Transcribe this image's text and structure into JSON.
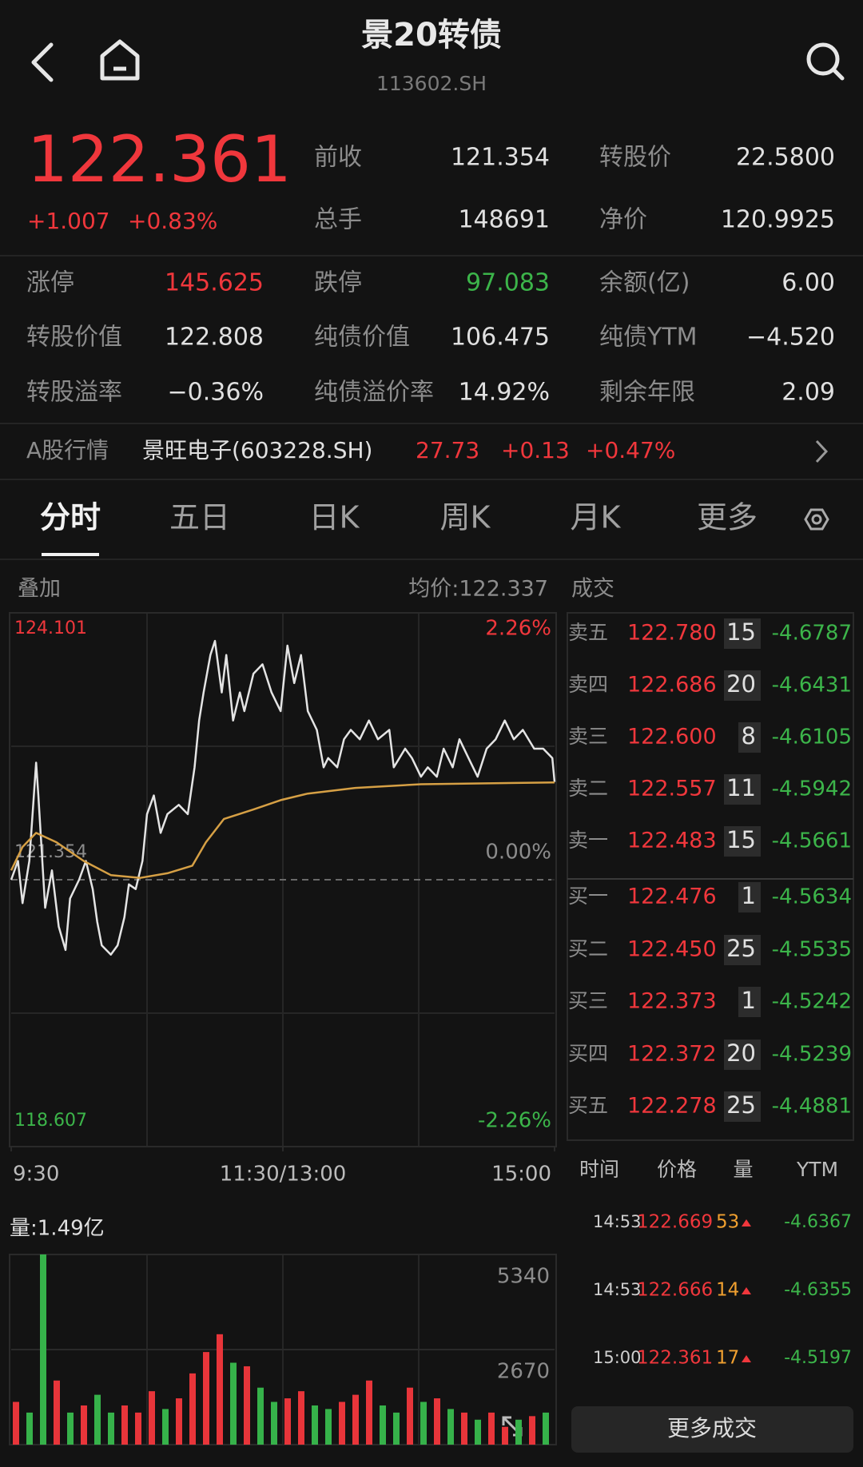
{
  "header": {
    "title": "景20转债",
    "code": "113602.SH"
  },
  "quote": {
    "price": "122.361",
    "change": "+1.007",
    "change_pct": "+0.83%",
    "stats": [
      {
        "label": "前收",
        "value": "121.354"
      },
      {
        "label": "转股价",
        "value": "22.5800"
      },
      {
        "label": "总手",
        "value": "148691"
      },
      {
        "label": "净价",
        "value": "120.9925"
      }
    ],
    "details": [
      {
        "label": "涨停",
        "value": "145.625"
      },
      {
        "label": "跌停",
        "value": "97.083"
      },
      {
        "label": "余额(亿)",
        "value": "6.00"
      },
      {
        "label": "转股价值",
        "value": "122.808"
      },
      {
        "label": "纯债价值",
        "value": "106.475"
      },
      {
        "label": "纯债YTM",
        "value": "−4.520"
      },
      {
        "label": "转股溢率",
        "value": "−0.36%"
      },
      {
        "label": "纯债溢价率",
        "value": "14.92%"
      },
      {
        "label": "剩余年限",
        "value": "2.09"
      }
    ]
  },
  "stock": {
    "label": "A股行情",
    "name": "景旺电子(603228.SH)",
    "price": "27.73",
    "change": "+0.13",
    "change_pct": "+0.47%"
  },
  "tabs": [
    "分时",
    "五日",
    "日K",
    "周K",
    "月K",
    "更多"
  ],
  "chart_panel": {
    "overlay": "叠加",
    "average": "均价:122.337",
    "trades_title": "成交",
    "volume_label": "量:1.49亿"
  },
  "chart_data": [
    {
      "type": "line",
      "xlim": [
        0,
        240
      ],
      "xticks": [
        {
          "value": 0,
          "label": "9:30"
        },
        {
          "value": 120,
          "label": "11:30/13:00"
        },
        {
          "value": 240,
          "label": "15:00"
        }
      ],
      "ylim": [
        118.607,
        124.101
      ],
      "yticks": [
        118.607,
        121.354,
        124.101
      ],
      "y2lim": [
        -2.26,
        2.26
      ],
      "y2ticks": [
        {
          "value": -2.26,
          "label": "-2.26%"
        },
        {
          "value": 0,
          "label": "0.00%"
        },
        {
          "value": 2.26,
          "label": "2.26%"
        }
      ],
      "series": [
        {
          "color": "#e4e4e4",
          "x": [
            0,
            3,
            5,
            8,
            11,
            12,
            15,
            18,
            21,
            24,
            26,
            30,
            33,
            36,
            38,
            40,
            44,
            47,
            50,
            52,
            55,
            58,
            60,
            63,
            66,
            69,
            74,
            78,
            81,
            83,
            85,
            88,
            90,
            93,
            95,
            98,
            101,
            103,
            107,
            111,
            115,
            119,
            122,
            125,
            128,
            131,
            135,
            138,
            140,
            144,
            147,
            150,
            154,
            158,
            162,
            167,
            169,
            174,
            177,
            181,
            184,
            188,
            191,
            195,
            198,
            202,
            206,
            210,
            214,
            218,
            222,
            226,
            231,
            235,
            239,
            240
          ],
          "values": [
            121.354,
            121.547,
            121.113,
            121.547,
            122.559,
            122.222,
            121.065,
            121.45,
            120.872,
            120.631,
            121.161,
            121.354,
            121.547,
            121.258,
            120.92,
            120.679,
            120.583,
            120.679,
            120.968,
            121.306,
            121.258,
            121.547,
            122.029,
            122.222,
            121.836,
            122.029,
            122.125,
            122.029,
            122.511,
            122.993,
            123.282,
            123.667,
            123.812,
            123.282,
            123.667,
            122.993,
            123.282,
            123.089,
            123.475,
            123.571,
            123.282,
            123.089,
            123.764,
            123.378,
            123.667,
            123.089,
            122.896,
            122.511,
            122.607,
            122.511,
            122.8,
            122.896,
            122.8,
            122.993,
            122.8,
            122.896,
            122.511,
            122.703,
            122.607,
            122.414,
            122.511,
            122.414,
            122.703,
            122.511,
            122.8,
            122.607,
            122.414,
            122.703,
            122.8,
            122.993,
            122.8,
            122.896,
            122.703,
            122.703,
            122.607,
            122.361
          ]
        },
        {
          "color": "#d6a045",
          "x": [
            0,
            5,
            11,
            20,
            32,
            44,
            57,
            69,
            80,
            86,
            94,
            107,
            119,
            131,
            152,
            181,
            240
          ],
          "values": [
            121.45,
            121.691,
            121.836,
            121.74,
            121.547,
            121.402,
            121.373,
            121.421,
            121.499,
            121.74,
            121.98,
            122.077,
            122.173,
            122.241,
            122.299,
            122.337,
            122.356
          ]
        }
      ]
    },
    {
      "type": "bar",
      "xlim": [
        0,
        240
      ],
      "x": [
        0,
        6,
        12,
        18,
        24,
        30,
        36,
        42,
        48,
        54,
        60,
        66,
        72,
        78,
        84,
        90,
        96,
        102,
        108,
        114,
        120,
        126,
        132,
        138,
        144,
        150,
        156,
        162,
        168,
        174,
        180,
        186,
        192,
        198,
        204,
        210,
        216,
        222,
        228,
        234
      ],
      "ylim": [
        0,
        5340
      ],
      "yticks": [
        2670,
        5340
      ],
      "series": [
        {
          "color": "#e8353a",
          "values": [
            1200,
            null,
            null,
            1800,
            null,
            1100,
            null,
            null,
            1100,
            900,
            1500,
            null,
            1300,
            2000,
            2600,
            3100,
            null,
            2200,
            null,
            null,
            1300,
            1500,
            null,
            null,
            1200,
            1400,
            1800,
            null,
            null,
            1600,
            null,
            1300,
            null,
            900,
            null,
            900,
            500,
            null,
            800,
            null
          ]
        },
        {
          "color": "#36b24a",
          "values": [
            null,
            900,
            5340,
            null,
            900,
            null,
            1400,
            900,
            null,
            null,
            null,
            1000,
            null,
            null,
            null,
            null,
            2300,
            null,
            1600,
            1200,
            null,
            null,
            1100,
            1000,
            null,
            null,
            null,
            1100,
            900,
            null,
            1200,
            null,
            1000,
            null,
            700,
            null,
            null,
            700,
            null,
            900
          ]
        }
      ]
    }
  ],
  "order_book": {
    "sell": [
      {
        "label": "卖五",
        "price": "122.780",
        "volume": "15",
        "ytm": "-4.6787"
      },
      {
        "label": "卖四",
        "price": "122.686",
        "volume": "20",
        "ytm": "-4.6431"
      },
      {
        "label": "卖三",
        "price": "122.600",
        "volume": "8",
        "ytm": "-4.6105"
      },
      {
        "label": "卖二",
        "price": "122.557",
        "volume": "11",
        "ytm": "-4.5942"
      },
      {
        "label": "卖一",
        "price": "122.483",
        "volume": "15",
        "ytm": "-4.5661"
      }
    ],
    "buy": [
      {
        "label": "买一",
        "price": "122.476",
        "volume": "1",
        "ytm": "-4.5634"
      },
      {
        "label": "买二",
        "price": "122.450",
        "volume": "25",
        "ytm": "-4.5535"
      },
      {
        "label": "买三",
        "price": "122.373",
        "volume": "1",
        "ytm": "-4.5242"
      },
      {
        "label": "买四",
        "price": "122.372",
        "volume": "20",
        "ytm": "-4.5239"
      },
      {
        "label": "买五",
        "price": "122.278",
        "volume": "25",
        "ytm": "-4.4881"
      }
    ]
  },
  "trades": {
    "headers": [
      "时间",
      "价格",
      "量",
      "YTM"
    ],
    "rows": [
      {
        "time": "14:53",
        "price": "122.669",
        "volume": "53",
        "ytm": "-4.6367"
      },
      {
        "time": "14:53",
        "price": "122.666",
        "volume": "14",
        "ytm": "-4.6355"
      },
      {
        "time": "15:00",
        "price": "122.361",
        "volume": "17",
        "ytm": "-4.5197"
      }
    ],
    "more": "更多成交"
  }
}
